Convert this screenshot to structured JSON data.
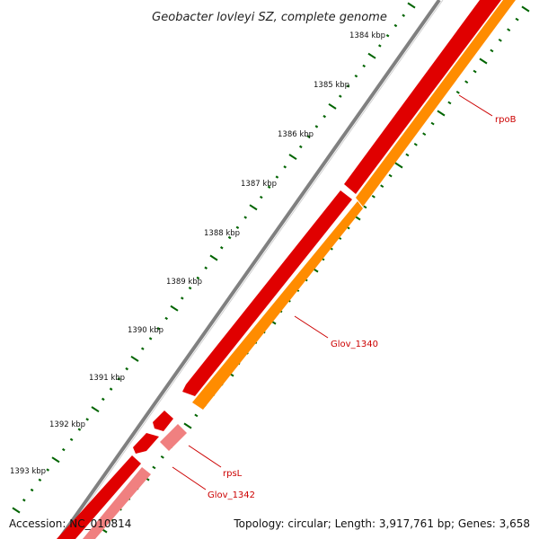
{
  "title": "Geobacter lovleyi SZ, complete genome",
  "ruler": {
    "labels": [
      "1384 kbp",
      "1385 kbp",
      "1386 kbp",
      "1387 kbp",
      "1388 kbp",
      "1389 kbp",
      "1390 kbp",
      "1391 kbp",
      "1392 kbp",
      "1393 kbp"
    ]
  },
  "genes": [
    {
      "name": "rpoB",
      "strand": "forward",
      "color": "#ff8c00"
    },
    {
      "name": "Glov_1340",
      "strand": "forward",
      "color": "#ff8c00"
    },
    {
      "name": "rpsL",
      "strand": "reverse",
      "color": "#ff0000"
    },
    {
      "name": "Glov_1342",
      "strand": "reverse",
      "color": "#f08080"
    }
  ],
  "colors": {
    "backbone": "#808080",
    "cds_forward": "#ff8c00",
    "cds_reverse": "#ff0000",
    "cds_light": "#f08080",
    "ticks": "#006400",
    "labels": "#cc0000"
  },
  "footer": {
    "accession": "Accession: NC_010814",
    "summary": "Topology: circular; Length: 3,917,761 bp; Genes: 3,658"
  }
}
